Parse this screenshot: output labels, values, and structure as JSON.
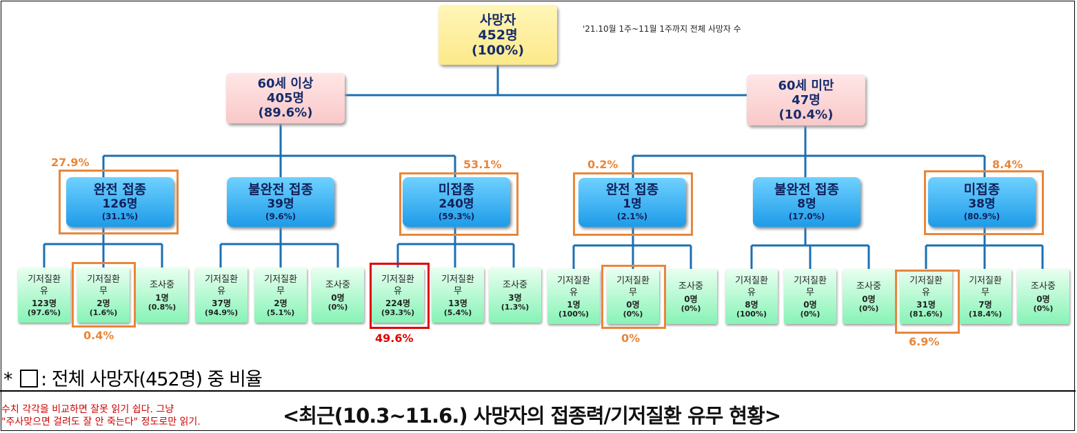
{
  "root": {
    "title": "사망자",
    "count": "452명",
    "pct": "(100%)"
  },
  "note": "'21.10월 1주~11월 1주까지 전체 사망자 수",
  "groups": [
    {
      "title": "60세 이상",
      "count": "405명",
      "pct": "(89.6%)"
    },
    {
      "title": "60세 미만",
      "count": "47명",
      "pct": "(10.4%)"
    }
  ],
  "vaccination": [
    {
      "title": "완전 접종",
      "count": "126명",
      "pct": "(31.1%)"
    },
    {
      "title": "불완전 접종",
      "count": "39명",
      "pct": "(9.6%)"
    },
    {
      "title": "미접종",
      "count": "240명",
      "pct": "(59.3%)"
    },
    {
      "title": "완전 접종",
      "count": "1명",
      "pct": "(2.1%)"
    },
    {
      "title": "불완전 접종",
      "count": "8명",
      "pct": "(17.0%)"
    },
    {
      "title": "미접종",
      "count": "38명",
      "pct": "(80.9%)"
    }
  ],
  "leaves": [
    {
      "l1": "기저질환",
      "l2": "유",
      "count": "123명",
      "pct": "(97.6%)"
    },
    {
      "l1": "기저질환",
      "l2": "무",
      "count": "2명",
      "pct": "(1.6%)"
    },
    {
      "l1": "조사중",
      "l2": "",
      "count": "1명",
      "pct": "(0.8%)"
    },
    {
      "l1": "기저질환",
      "l2": "유",
      "count": "37명",
      "pct": "(94.9%)"
    },
    {
      "l1": "기저질환",
      "l2": "무",
      "count": "2명",
      "pct": "(5.1%)"
    },
    {
      "l1": "조사중",
      "l2": "",
      "count": "0명",
      "pct": "(0%)"
    },
    {
      "l1": "기저질환",
      "l2": "유",
      "count": "224명",
      "pct": "(93.3%)"
    },
    {
      "l1": "기저질환",
      "l2": "무",
      "count": "13명",
      "pct": "(5.4%)"
    },
    {
      "l1": "조사중",
      "l2": "",
      "count": "3명",
      "pct": "(1.3%)"
    },
    {
      "l1": "기저질환",
      "l2": "유",
      "count": "1명",
      "pct": "(100%)"
    },
    {
      "l1": "기저질환",
      "l2": "무",
      "count": "0명",
      "pct": "(0%)"
    },
    {
      "l1": "조사중",
      "l2": "",
      "count": "0명",
      "pct": "(0%)"
    },
    {
      "l1": "기저질환",
      "l2": "유",
      "count": "8명",
      "pct": "(100%)"
    },
    {
      "l1": "기저질환",
      "l2": "무",
      "count": "0명",
      "pct": "(0%)"
    },
    {
      "l1": "조사중",
      "l2": "",
      "count": "0명",
      "pct": "(0%)"
    },
    {
      "l1": "기저질환",
      "l2": "유",
      "count": "31명",
      "pct": "(81.6%)"
    },
    {
      "l1": "기저질환",
      "l2": "무",
      "count": "7명",
      "pct": "(18.4%)"
    },
    {
      "l1": "조사중",
      "l2": "",
      "count": "0명",
      "pct": "(0%)"
    }
  ],
  "share_of_total": {
    "full_60plus": "27.9%",
    "unvax_60plus": "53.1%",
    "full_under60": "0.2%",
    "unvax_under60": "8.4%",
    "full_60plus_no_condition": "0.4%",
    "unvax_60plus_with_condition": "49.6%",
    "full_under60_no_condition": "0%",
    "unvax_under60_with_condition": "6.9%"
  },
  "legend": {
    "prefix": "*",
    "text": ": 전체 사망자(452명) 중 비율"
  },
  "caption": "<최근(10.3~11.6.) 사망자의 접종력/기저질환 유무 현황>",
  "comment": [
    "수치 각각을 비교하면 잘못 읽기 쉽다. 그냥",
    "\"주사맞으면 걸려도 잘 안 죽는다\" 정도로만 읽기."
  ],
  "colors": {
    "highlight_orange": "#e8863a",
    "highlight_red": "#e00000",
    "connector": "#1a6fb3"
  }
}
